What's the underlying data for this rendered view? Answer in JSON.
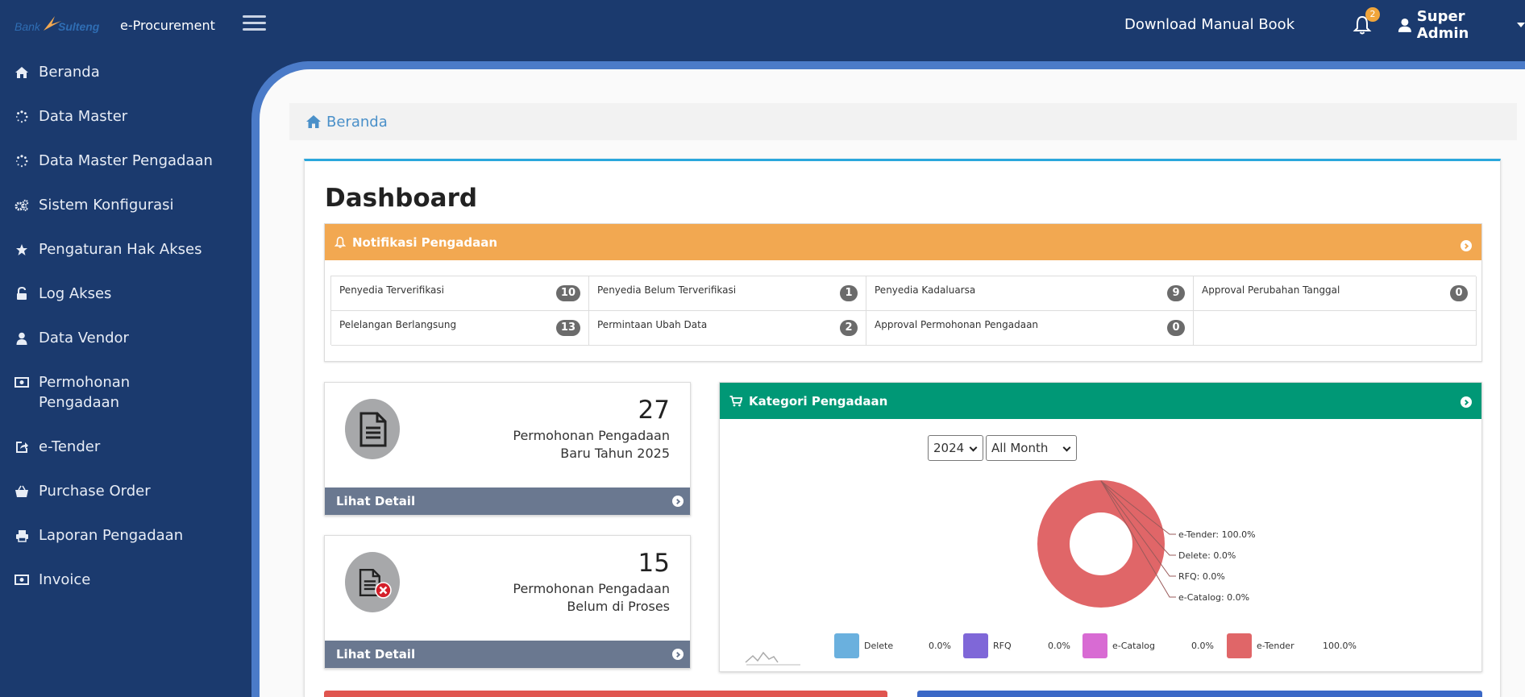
{
  "header": {
    "logo_text": "Bank Sulteng",
    "app_title": "e-Procurement",
    "manual_link": "Download Manual Book",
    "notification_count": "2",
    "user_name": "Super Admin"
  },
  "sidebar": {
    "items": [
      {
        "label": "Beranda",
        "icon": "home-icon"
      },
      {
        "label": "Data Master",
        "icon": "spinner-icon"
      },
      {
        "label": "Data Master Pengadaan",
        "icon": "spinner-icon"
      },
      {
        "label": "Sistem Konfigurasi",
        "icon": "cogs-icon"
      },
      {
        "label": "Pengaturan Hak Akses",
        "icon": "star-icon"
      },
      {
        "label": "Log Akses",
        "icon": "unlock-icon"
      },
      {
        "label": "Data Vendor",
        "icon": "user-icon"
      },
      {
        "label": "Permohonan Pengadaan",
        "icon": "money-icon"
      },
      {
        "label": "e-Tender",
        "icon": "share-icon"
      },
      {
        "label": "Purchase Order",
        "icon": "basket-icon"
      },
      {
        "label": "Laporan Pengadaan",
        "icon": "print-icon"
      },
      {
        "label": "Invoice",
        "icon": "money-icon"
      }
    ]
  },
  "breadcrumb": {
    "label": "Beranda"
  },
  "dashboard": {
    "title": "Dashboard",
    "notif": {
      "title": "Notifikasi Pengadaan",
      "cells": [
        {
          "label": "Penyedia Terverifikasi",
          "count": "10"
        },
        {
          "label": "Penyedia Belum Terverifikasi",
          "count": "1"
        },
        {
          "label": "Penyedia Kadaluarsa",
          "count": "9"
        },
        {
          "label": "Approval Perubahan Tanggal",
          "count": "0"
        },
        {
          "label": "Pelelangan Berlangsung",
          "count": "13"
        },
        {
          "label": "Permintaan Ubah Data",
          "count": "2"
        },
        {
          "label": "Approval Permohonan Pengadaan",
          "count": "0"
        }
      ]
    },
    "stats": [
      {
        "number": "27",
        "line1": "Permohonan Pengadaan",
        "line2": "Baru Tahun 2025",
        "footer": "Lihat Detail"
      },
      {
        "number": "15",
        "line1": "Permohonan Pengadaan",
        "line2": "Belum di Proses",
        "footer": "Lihat Detail"
      }
    ],
    "kategori": {
      "title": "Kategori Pengadaan",
      "year": "2024",
      "month": "All Month"
    }
  },
  "colors": {
    "navy": "#1b3a6e",
    "orange": "#f2a851",
    "green": "#009876",
    "slate": "#6a7890"
  },
  "chart_data": {
    "type": "pie",
    "style": "donut",
    "categories": [
      "e-Tender",
      "Delete",
      "RFQ",
      "e-Catalog"
    ],
    "values": [
      100.0,
      0.0,
      0.0,
      0.0
    ],
    "callout_labels": [
      "e-Tender: 100.0%",
      "Delete: 0.0%",
      "RFQ: 0.0%",
      "e-Catalog: 0.0%"
    ],
    "legend": [
      {
        "name": "Delete",
        "value": "0.0%",
        "color": "#6ab0de"
      },
      {
        "name": "RFQ",
        "value": "0.0%",
        "color": "#7f67d8"
      },
      {
        "name": "e-Catalog",
        "value": "0.0%",
        "color": "#d86bd3"
      },
      {
        "name": "e-Tender",
        "value": "100.0%",
        "color": "#e06668"
      }
    ],
    "legend_placement": "bottom"
  }
}
